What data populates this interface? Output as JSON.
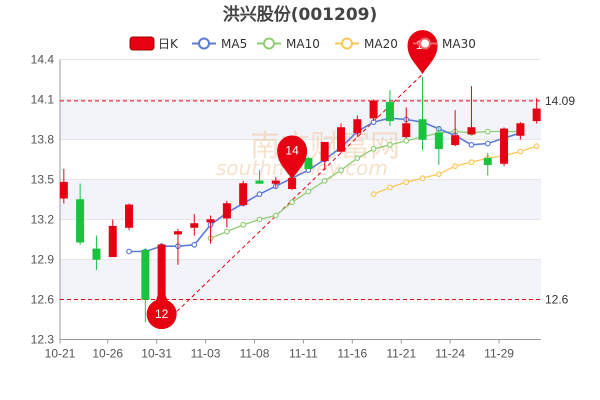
{
  "chart_data": {
    "type": "candlestick",
    "title": "洪兴股份(001209)",
    "legend": {
      "placement": "top",
      "items": [
        {
          "key": "kline",
          "label": "日K",
          "color": "#e60012"
        },
        {
          "key": "ma5",
          "label": "MA5",
          "color": "#5b7bd5"
        },
        {
          "key": "ma10",
          "label": "MA10",
          "color": "#91cc75"
        },
        {
          "key": "ma20",
          "label": "MA20",
          "color": "#fac858"
        },
        {
          "key": "ma30",
          "label": "MA30",
          "color": "#ee6666"
        }
      ]
    },
    "y_axis": {
      "min": 12.3,
      "max": 14.4,
      "ticks": [
        "12.3",
        "12.6",
        "12.9",
        "13.2",
        "13.5",
        "13.8",
        "14.1",
        "14.4"
      ],
      "position": "left"
    },
    "x_axis": {
      "tick_labels": [
        {
          "label": "10-21",
          "index": 0
        },
        {
          "label": "10-26",
          "index": 3
        },
        {
          "label": "10-31",
          "index": 6
        },
        {
          "label": "11-03",
          "index": 9
        },
        {
          "label": "11-08",
          "index": 12
        },
        {
          "label": "11-11",
          "index": 15
        },
        {
          "label": "11-16",
          "index": 18
        },
        {
          "label": "11-21",
          "index": 21
        },
        {
          "label": "11-24",
          "index": 24
        },
        {
          "label": "11-29",
          "index": 27
        }
      ]
    },
    "candles": [
      {
        "o": 13.36,
        "c": 13.48,
        "h": 13.58,
        "l": 13.32
      },
      {
        "o": 13.35,
        "c": 13.03,
        "h": 13.47,
        "l": 13.01
      },
      {
        "o": 12.98,
        "c": 12.9,
        "h": 13.08,
        "l": 12.82
      },
      {
        "o": 12.92,
        "c": 13.15,
        "h": 13.2,
        "l": 12.92
      },
      {
        "o": 13.14,
        "c": 13.31,
        "h": 13.32,
        "l": 13.12
      },
      {
        "o": 12.97,
        "c": 12.6,
        "h": 12.98,
        "l": 12.43
      },
      {
        "o": 12.4,
        "c": 13.01,
        "h": 13.02,
        "l": 12.4
      },
      {
        "o": 13.09,
        "c": 13.11,
        "h": 13.13,
        "l": 12.86
      },
      {
        "o": 13.14,
        "c": 13.17,
        "h": 13.24,
        "l": 13.08
      },
      {
        "o": 13.18,
        "c": 13.2,
        "h": 13.23,
        "l": 13.02
      },
      {
        "o": 13.21,
        "c": 13.32,
        "h": 13.34,
        "l": 13.14
      },
      {
        "o": 13.31,
        "c": 13.47,
        "h": 13.49,
        "l": 13.3
      },
      {
        "o": 13.49,
        "c": 13.47,
        "h": 13.57,
        "l": 13.47
      },
      {
        "o": 13.47,
        "c": 13.49,
        "h": 13.52,
        "l": 13.44
      },
      {
        "o": 13.43,
        "c": 13.51,
        "h": 13.54,
        "l": 13.42
      },
      {
        "o": 13.66,
        "c": 13.58,
        "h": 13.67,
        "l": 13.58
      },
      {
        "o": 13.64,
        "c": 13.78,
        "h": 13.78,
        "l": 13.57
      },
      {
        "o": 13.71,
        "c": 13.89,
        "h": 13.92,
        "l": 13.7
      },
      {
        "o": 13.85,
        "c": 13.95,
        "h": 13.98,
        "l": 13.82
      },
      {
        "o": 13.96,
        "c": 14.09,
        "h": 14.1,
        "l": 13.94
      },
      {
        "o": 14.08,
        "c": 13.94,
        "h": 14.17,
        "l": 13.9
      },
      {
        "o": 13.82,
        "c": 13.92,
        "h": 14.04,
        "l": 13.81
      },
      {
        "o": 13.95,
        "c": 13.8,
        "h": 14.27,
        "l": 13.72
      },
      {
        "o": 13.85,
        "c": 13.73,
        "h": 13.9,
        "l": 13.61
      },
      {
        "o": 13.76,
        "c": 13.83,
        "h": 14.02,
        "l": 13.75
      },
      {
        "o": 13.84,
        "c": 13.89,
        "h": 14.2,
        "l": 13.84
      },
      {
        "o": 13.66,
        "c": 13.61,
        "h": 13.7,
        "l": 13.53
      },
      {
        "o": 13.62,
        "c": 13.88,
        "h": 13.89,
        "l": 13.6
      },
      {
        "o": 13.83,
        "c": 13.92,
        "h": 13.93,
        "l": 13.8
      },
      {
        "o": 13.94,
        "c": 14.03,
        "h": 14.11,
        "l": 13.92
      }
    ],
    "ma5": [
      null,
      null,
      null,
      null,
      12.96,
      12.96,
      13.0,
      13.0,
      13.01,
      13.16,
      13.25,
      13.32,
      13.39,
      13.45,
      13.51,
      13.57,
      13.65,
      13.74,
      13.86,
      13.93,
      13.96,
      13.95,
      13.93,
      13.88,
      13.83,
      13.76,
      13.77,
      13.81,
      13.85,
      null
    ],
    "ma10": [
      null,
      null,
      null,
      null,
      null,
      null,
      null,
      null,
      null,
      13.06,
      13.11,
      13.16,
      13.2,
      13.23,
      13.33,
      13.41,
      13.49,
      13.57,
      13.66,
      13.73,
      13.76,
      13.79,
      13.82,
      13.85,
      13.86,
      13.85,
      13.86,
      13.86,
      13.86,
      null
    ],
    "ma20": [
      null,
      null,
      null,
      null,
      null,
      null,
      null,
      null,
      null,
      null,
      null,
      null,
      null,
      null,
      null,
      null,
      null,
      null,
      null,
      13.39,
      13.44,
      13.48,
      13.51,
      13.54,
      13.6,
      13.63,
      13.66,
      13.68,
      13.71,
      13.75
    ],
    "ma30": [],
    "reference_lines": [
      {
        "value": 14.09,
        "label": "14.09"
      },
      {
        "value": 12.6,
        "label": "12.6"
      }
    ],
    "markers": [
      {
        "index": 6,
        "value": 12.4,
        "label": "12"
      },
      {
        "index": 14,
        "value": 13.5,
        "label": "14"
      },
      {
        "index": 22,
        "value": 14.29,
        "label": "14"
      }
    ],
    "trend_line": {
      "from": {
        "index": 6,
        "value": 12.4
      },
      "to": {
        "index": 22,
        "value": 14.29
      }
    },
    "watermark": "南方财富网",
    "watermark_sub": "southmoney.com",
    "grid": {
      "horizontal_bands": true
    }
  }
}
